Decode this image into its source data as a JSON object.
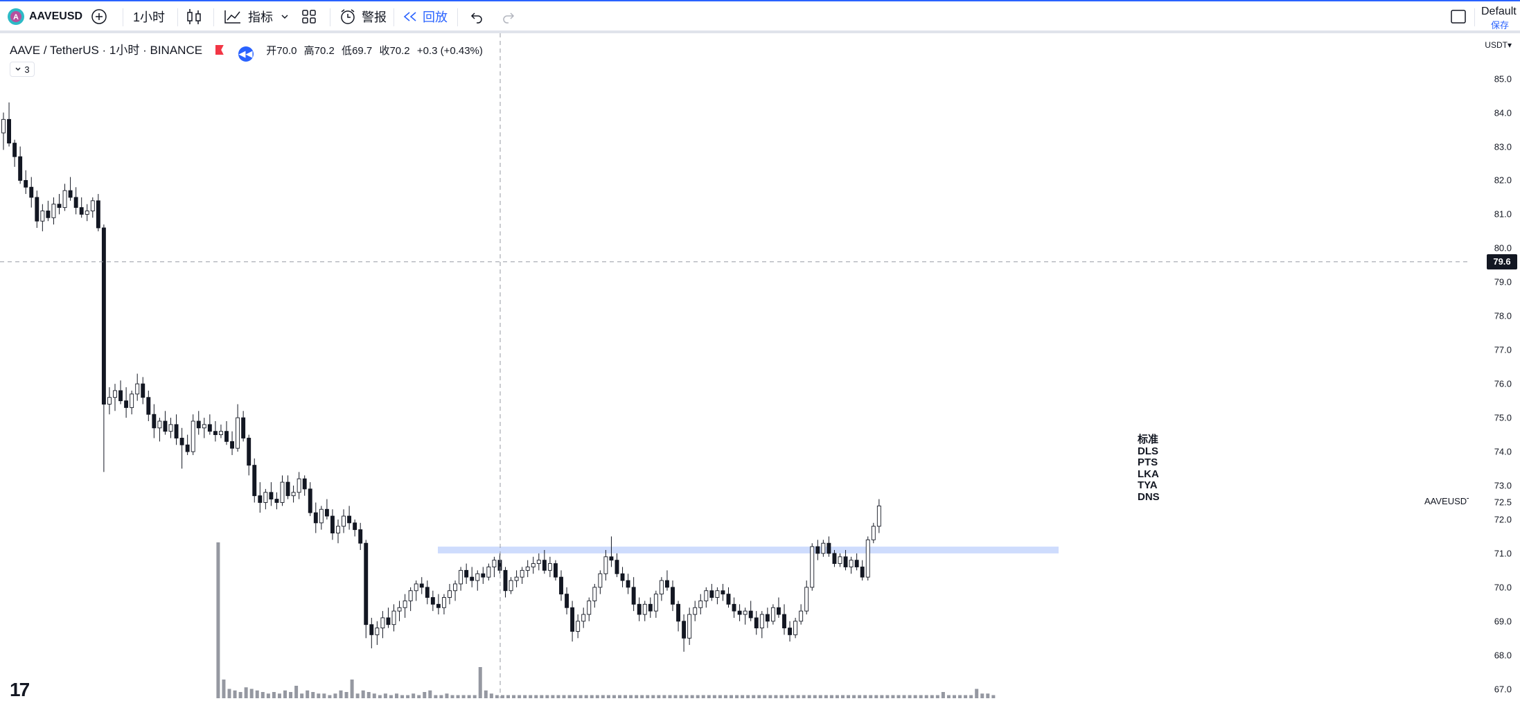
{
  "toolbar": {
    "symbol": "AAVEUSD",
    "interval": "1小时",
    "indicators_label": "指标",
    "alert_label": "警报",
    "replay_label": "回放",
    "layout_name": "Default",
    "save_label": "保存",
    "icons": [
      "logo-icon",
      "add-symbol-icon",
      "candles-icon",
      "indicators-icon",
      "chevron-down-icon",
      "templates-icon",
      "alert-clock-icon",
      "replay-icon",
      "undo-icon",
      "redo-icon",
      "fullscreen-icon"
    ]
  },
  "legend": {
    "title": "AAVE / TetherUS · 1小时 · BINANCE",
    "open_label": "开",
    "open": "70.0",
    "high_label": "高",
    "high": "70.2",
    "low_label": "低",
    "low": "69.7",
    "close_label": "收",
    "close": "70.2",
    "change": "+0.3 (+0.43%)",
    "collapsed_count": "3"
  },
  "axis": {
    "currency": "USDT",
    "crosshair_price": "79.6",
    "symbol_label": "AAVEUSDT"
  },
  "prefs_list": [
    "标准",
    "DLS",
    "PTS",
    "LKA",
    "TYA",
    "DNS"
  ],
  "logo_text": "17",
  "colors": {
    "accent": "#2962ff",
    "candle_border": "#131722",
    "zone": "#c9d8fd",
    "volume": "#9598a1"
  },
  "chart_data": {
    "type": "candlestick",
    "y_ticks": [
      "85.0",
      "84.0",
      "83.0",
      "82.0",
      "81.0",
      "80.0",
      "79.0",
      "78.0",
      "77.0",
      "76.0",
      "75.0",
      "74.0",
      "73.0",
      "72.5",
      "72.0",
      "71.0",
      "70.0",
      "69.0",
      "68.0",
      "67.0"
    ],
    "ylim": [
      67.0,
      86.0
    ],
    "support_zone": [
      71.0,
      71.2
    ],
    "crosshair_price": 79.6,
    "candles": [
      [
        83.4,
        84.0,
        82.9,
        83.8
      ],
      [
        83.8,
        84.3,
        83.0,
        83.1
      ],
      [
        83.1,
        83.2,
        82.4,
        82.7
      ],
      [
        82.7,
        83.0,
        81.9,
        82.0
      ],
      [
        82.0,
        82.3,
        81.6,
        81.8
      ],
      [
        81.8,
        82.1,
        81.2,
        81.5
      ],
      [
        81.5,
        81.7,
        80.6,
        80.8
      ],
      [
        80.8,
        81.3,
        80.5,
        81.1
      ],
      [
        81.1,
        81.4,
        80.8,
        80.9
      ],
      [
        80.9,
        81.5,
        80.7,
        81.3
      ],
      [
        81.3,
        81.6,
        81.0,
        81.2
      ],
      [
        81.2,
        81.9,
        81.1,
        81.7
      ],
      [
        81.7,
        82.1,
        81.4,
        81.5
      ],
      [
        81.5,
        81.8,
        81.0,
        81.2
      ],
      [
        81.2,
        81.5,
        80.9,
        81.0
      ],
      [
        81.0,
        81.3,
        80.8,
        81.1
      ],
      [
        81.1,
        81.5,
        80.9,
        81.4
      ],
      [
        81.4,
        81.6,
        80.5,
        80.6
      ],
      [
        80.6,
        80.7,
        73.4,
        75.4
      ],
      [
        75.4,
        75.9,
        75.1,
        75.6
      ],
      [
        75.6,
        76.0,
        75.2,
        75.8
      ],
      [
        75.8,
        76.1,
        75.4,
        75.5
      ],
      [
        75.5,
        75.9,
        75.0,
        75.3
      ],
      [
        75.3,
        75.8,
        75.1,
        75.7
      ],
      [
        75.7,
        76.3,
        75.5,
        76.0
      ],
      [
        76.0,
        76.2,
        75.4,
        75.6
      ],
      [
        75.6,
        75.8,
        74.9,
        75.1
      ],
      [
        75.1,
        75.4,
        74.4,
        74.7
      ],
      [
        74.7,
        75.0,
        74.3,
        74.9
      ],
      [
        74.9,
        75.2,
        74.5,
        74.6
      ],
      [
        74.6,
        75.0,
        74.4,
        74.8
      ],
      [
        74.8,
        75.1,
        74.2,
        74.4
      ],
      [
        74.4,
        74.7,
        73.5,
        74.2
      ],
      [
        74.2,
        74.5,
        73.9,
        74.0
      ],
      [
        74.0,
        75.1,
        73.9,
        74.9
      ],
      [
        74.9,
        75.2,
        74.5,
        74.7
      ],
      [
        74.7,
        75.0,
        74.4,
        74.8
      ],
      [
        74.8,
        75.1,
        74.5,
        74.6
      ],
      [
        74.6,
        74.9,
        74.3,
        74.5
      ],
      [
        74.5,
        74.8,
        74.4,
        74.6
      ],
      [
        74.6,
        74.9,
        74.2,
        74.3
      ],
      [
        74.3,
        74.6,
        73.9,
        74.1
      ],
      [
        74.1,
        75.4,
        74.0,
        75.0
      ],
      [
        75.0,
        75.2,
        74.3,
        74.4
      ],
      [
        74.4,
        74.5,
        73.3,
        73.6
      ],
      [
        73.6,
        73.8,
        72.5,
        72.7
      ],
      [
        72.7,
        73.1,
        72.2,
        72.5
      ],
      [
        72.5,
        72.9,
        72.3,
        72.8
      ],
      [
        72.8,
        73.1,
        72.4,
        72.6
      ],
      [
        72.6,
        72.8,
        72.3,
        72.5
      ],
      [
        72.5,
        73.3,
        72.4,
        73.1
      ],
      [
        73.1,
        73.3,
        72.6,
        72.7
      ],
      [
        72.7,
        73.0,
        72.5,
        72.8
      ],
      [
        72.8,
        73.4,
        72.6,
        73.2
      ],
      [
        73.2,
        73.3,
        72.7,
        72.9
      ],
      [
        72.9,
        73.1,
        72.1,
        72.2
      ],
      [
        72.2,
        72.5,
        71.6,
        71.9
      ],
      [
        71.9,
        72.4,
        71.7,
        72.3
      ],
      [
        72.3,
        72.6,
        72.0,
        72.1
      ],
      [
        72.1,
        72.3,
        71.4,
        71.6
      ],
      [
        71.6,
        72.0,
        71.3,
        71.8
      ],
      [
        71.8,
        72.3,
        71.6,
        72.1
      ],
      [
        72.1,
        72.4,
        71.7,
        71.9
      ],
      [
        71.9,
        72.0,
        71.5,
        71.7
      ],
      [
        71.7,
        71.9,
        71.1,
        71.3
      ],
      [
        71.3,
        71.4,
        68.5,
        68.9
      ],
      [
        68.9,
        69.1,
        68.2,
        68.6
      ],
      [
        68.6,
        69.0,
        68.3,
        68.8
      ],
      [
        68.8,
        69.3,
        68.5,
        69.1
      ],
      [
        69.1,
        69.4,
        68.8,
        68.9
      ],
      [
        68.9,
        69.5,
        68.7,
        69.3
      ],
      [
        69.3,
        69.6,
        69.0,
        69.4
      ],
      [
        69.4,
        69.8,
        69.1,
        69.6
      ],
      [
        69.6,
        70.0,
        69.3,
        69.9
      ],
      [
        69.9,
        70.2,
        69.6,
        70.1
      ],
      [
        70.1,
        70.3,
        69.8,
        70.0
      ],
      [
        70.0,
        70.2,
        69.5,
        69.7
      ],
      [
        69.7,
        69.9,
        69.3,
        69.5
      ],
      [
        69.5,
        69.8,
        69.2,
        69.4
      ],
      [
        69.4,
        69.8,
        69.2,
        69.7
      ],
      [
        69.7,
        70.1,
        69.5,
        69.9
      ],
      [
        69.9,
        70.2,
        69.6,
        70.1
      ],
      [
        70.1,
        70.6,
        69.9,
        70.5
      ],
      [
        70.5,
        70.7,
        70.1,
        70.3
      ],
      [
        70.3,
        70.6,
        70.0,
        70.2
      ],
      [
        70.2,
        70.5,
        69.9,
        70.4
      ],
      [
        70.4,
        70.6,
        70.1,
        70.3
      ],
      [
        70.3,
        70.7,
        70.2,
        70.6
      ],
      [
        70.6,
        70.9,
        70.3,
        70.8
      ],
      [
        70.8,
        71.0,
        70.4,
        70.5
      ],
      [
        70.5,
        70.6,
        69.7,
        69.9
      ],
      [
        69.9,
        70.3,
        69.8,
        70.2
      ],
      [
        70.2,
        70.5,
        70.0,
        70.3
      ],
      [
        70.3,
        70.6,
        70.1,
        70.5
      ],
      [
        70.5,
        70.8,
        70.3,
        70.6
      ],
      [
        70.6,
        70.9,
        70.4,
        70.7
      ],
      [
        70.7,
        71.0,
        70.5,
        70.8
      ],
      [
        70.8,
        71.1,
        70.4,
        70.5
      ],
      [
        70.5,
        70.9,
        70.3,
        70.7
      ],
      [
        70.7,
        70.8,
        70.2,
        70.3
      ],
      [
        70.3,
        70.5,
        69.6,
        69.8
      ],
      [
        69.8,
        70.0,
        69.2,
        69.4
      ],
      [
        69.4,
        69.6,
        68.4,
        68.7
      ],
      [
        68.7,
        69.2,
        68.5,
        69.0
      ],
      [
        69.0,
        69.4,
        68.8,
        69.2
      ],
      [
        69.2,
        69.7,
        69.0,
        69.6
      ],
      [
        69.6,
        70.1,
        69.4,
        70.0
      ],
      [
        70.0,
        70.5,
        69.8,
        70.4
      ],
      [
        70.4,
        71.1,
        70.2,
        70.9
      ],
      [
        70.9,
        71.5,
        70.6,
        70.8
      ],
      [
        70.8,
        71.0,
        70.3,
        70.4
      ],
      [
        70.4,
        70.6,
        70.0,
        70.2
      ],
      [
        70.2,
        70.4,
        69.8,
        70.0
      ],
      [
        70.0,
        70.3,
        69.3,
        69.5
      ],
      [
        69.5,
        69.7,
        69.0,
        69.2
      ],
      [
        69.2,
        69.6,
        69.0,
        69.5
      ],
      [
        69.5,
        69.7,
        69.1,
        69.3
      ],
      [
        69.3,
        69.9,
        69.1,
        69.8
      ],
      [
        69.8,
        70.3,
        69.6,
        70.2
      ],
      [
        70.2,
        70.5,
        69.9,
        70.0
      ],
      [
        70.0,
        70.2,
        69.3,
        69.5
      ],
      [
        69.5,
        69.6,
        68.7,
        69.0
      ],
      [
        69.0,
        69.2,
        68.1,
        68.5
      ],
      [
        68.5,
        69.4,
        68.3,
        69.2
      ],
      [
        69.2,
        69.6,
        69.0,
        69.4
      ],
      [
        69.4,
        69.8,
        69.2,
        69.6
      ],
      [
        69.6,
        70.0,
        69.4,
        69.9
      ],
      [
        69.9,
        70.1,
        69.6,
        69.7
      ],
      [
        69.7,
        70.0,
        69.5,
        69.9
      ],
      [
        69.9,
        70.1,
        69.6,
        69.8
      ],
      [
        69.8,
        70.0,
        69.4,
        69.5
      ],
      [
        69.5,
        69.7,
        69.1,
        69.3
      ],
      [
        69.3,
        69.5,
        69.0,
        69.2
      ],
      [
        69.2,
        69.4,
        68.9,
        69.3
      ],
      [
        69.3,
        69.6,
        69.0,
        69.1
      ],
      [
        69.1,
        69.3,
        68.6,
        68.8
      ],
      [
        68.8,
        69.3,
        68.5,
        69.2
      ],
      [
        69.2,
        69.4,
        68.8,
        69.0
      ],
      [
        69.0,
        69.5,
        68.9,
        69.4
      ],
      [
        69.4,
        69.7,
        69.1,
        69.2
      ],
      [
        69.2,
        69.5,
        68.6,
        68.8
      ],
      [
        68.8,
        69.0,
        68.4,
        68.6
      ],
      [
        68.6,
        69.1,
        68.5,
        69.0
      ],
      [
        69.0,
        69.5,
        68.9,
        69.3
      ],
      [
        69.3,
        70.2,
        69.2,
        70.0
      ],
      [
        70.0,
        71.3,
        69.9,
        71.2
      ],
      [
        71.2,
        71.4,
        70.8,
        71.0
      ],
      [
        71.0,
        71.4,
        70.9,
        71.3
      ],
      [
        71.3,
        71.5,
        70.9,
        71.0
      ],
      [
        71.0,
        71.1,
        70.6,
        70.7
      ],
      [
        70.7,
        71.0,
        70.6,
        70.9
      ],
      [
        70.9,
        71.1,
        70.5,
        70.6
      ],
      [
        70.6,
        70.9,
        70.4,
        70.8
      ],
      [
        70.8,
        71.0,
        70.5,
        70.6
      ],
      [
        70.6,
        70.8,
        70.2,
        70.3
      ],
      [
        70.3,
        71.5,
        70.2,
        71.4
      ],
      [
        71.4,
        71.9,
        71.3,
        71.8
      ],
      [
        71.8,
        72.6,
        71.6,
        72.4
      ]
    ],
    "volume": [
      0,
      0,
      0,
      0,
      0,
      0,
      0,
      0,
      0,
      0,
      0,
      0,
      0,
      0,
      0,
      0,
      0,
      0,
      1.0,
      0.12,
      0.06,
      0.05,
      0.04,
      0.07,
      0.06,
      0.05,
      0.04,
      0.03,
      0.04,
      0.03,
      0.05,
      0.04,
      0.08,
      0.03,
      0.05,
      0.04,
      0.03,
      0.03,
      0.02,
      0.03,
      0.05,
      0.04,
      0.12,
      0.03,
      0.05,
      0.04,
      0.03,
      0.02,
      0.03,
      0.02,
      0.03,
      0.02,
      0.02,
      0.03,
      0.02,
      0.04,
      0.05,
      0.02,
      0.02,
      0.03,
      0.02,
      0.02,
      0.02,
      0.02,
      0.02,
      0.2,
      0.05,
      0.03,
      0.02,
      0.02,
      0.02,
      0.02,
      0.02,
      0.02,
      0.02,
      0.02,
      0.02,
      0.02,
      0.02,
      0.02,
      0.02,
      0.02,
      0.02,
      0.02,
      0.02,
      0.02,
      0.02,
      0.02,
      0.02,
      0.02,
      0.02,
      0.02,
      0.02,
      0.02,
      0.02,
      0.02,
      0.02,
      0.02,
      0.02,
      0.02,
      0.02,
      0.02,
      0.02,
      0.02,
      0.02,
      0.02,
      0.02,
      0.02,
      0.02,
      0.02,
      0.02,
      0.02,
      0.02,
      0.02,
      0.02,
      0.02,
      0.02,
      0.02,
      0.02,
      0.02,
      0.02,
      0.02,
      0.02,
      0.02,
      0.02,
      0.02,
      0.02,
      0.02,
      0.02,
      0.02,
      0.02,
      0.02,
      0.02,
      0.02,
      0.02,
      0.02,
      0.02,
      0.02,
      0.02,
      0.02,
      0.02,
      0.02,
      0.02,
      0.02,
      0.02,
      0.02,
      0.02,
      0.02,
      0.04,
      0.02,
      0.02,
      0.02,
      0.02,
      0.02,
      0.06,
      0.03,
      0.03,
      0.02
    ]
  }
}
